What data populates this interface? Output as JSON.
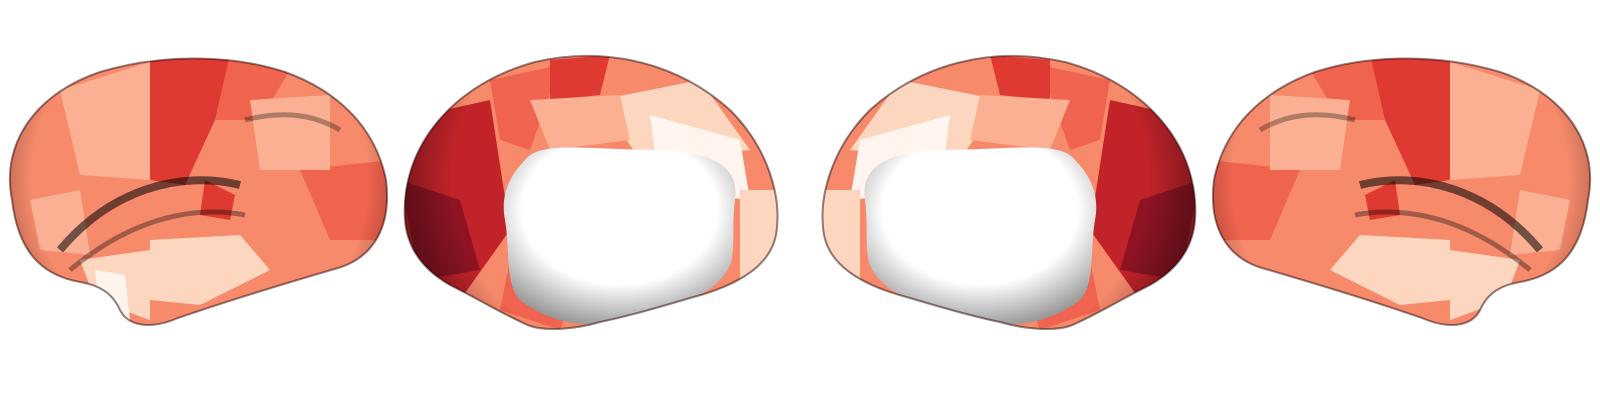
{
  "figure": {
    "views": [
      {
        "hemisphere": "left",
        "view": "lateral"
      },
      {
        "hemisphere": "left",
        "view": "medial"
      },
      {
        "hemisphere": "right",
        "view": "medial"
      },
      {
        "hemisphere": "right",
        "view": "lateral"
      }
    ],
    "colormap": {
      "name": "Reds",
      "stops": [
        "#fff5ee",
        "#fdd6c0",
        "#fbb093",
        "#f88a6c",
        "#f0644f",
        "#de3a32",
        "#c22329",
        "#8e1424"
      ]
    },
    "medial_wall_color": "#ffffff",
    "shading_color": "#000000"
  }
}
